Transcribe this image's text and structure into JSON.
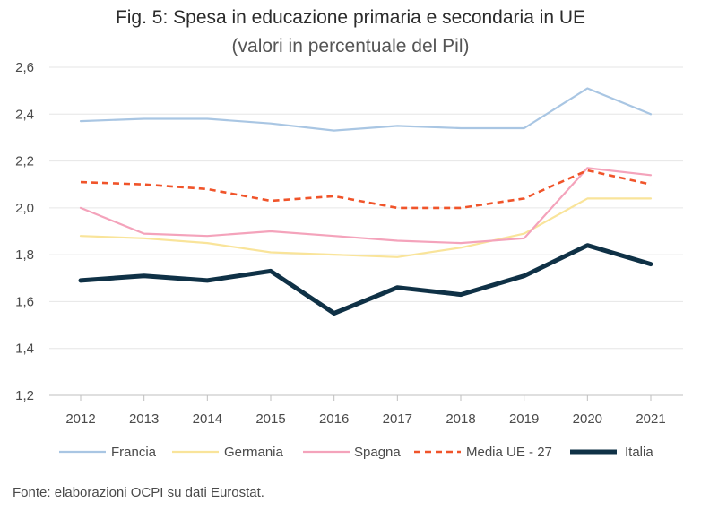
{
  "chart_data": {
    "type": "line",
    "title": "Fig. 5: Spesa in educazione primaria e secondaria in UE",
    "subtitle": "(valori in percentuale del Pil)",
    "categories": [
      "2012",
      "2013",
      "2014",
      "2015",
      "2016",
      "2017",
      "2018",
      "2019",
      "2020",
      "2021"
    ],
    "ylim": [
      1.2,
      2.6
    ],
    "yticks": [
      "1,2",
      "1,4",
      "1,6",
      "1,8",
      "2,0",
      "2,2",
      "2,4",
      "2,6"
    ],
    "ytick_values": [
      1.2,
      1.4,
      1.6,
      1.8,
      2.0,
      2.2,
      2.4,
      2.6
    ],
    "grid": true,
    "legend_position": "bottom",
    "series": [
      {
        "name": "Francia",
        "color": "#a9c6e3",
        "style": "solid",
        "width": "thin",
        "values": [
          2.37,
          2.38,
          2.38,
          2.36,
          2.33,
          2.35,
          2.34,
          2.34,
          2.51,
          2.4
        ]
      },
      {
        "name": "Germania",
        "color": "#f9e49a",
        "style": "solid",
        "width": "thin",
        "values": [
          1.88,
          1.87,
          1.85,
          1.81,
          1.8,
          1.79,
          1.83,
          1.89,
          2.04,
          2.04
        ]
      },
      {
        "name": "Spagna",
        "color": "#f4a3bb",
        "style": "solid",
        "width": "thin",
        "values": [
          2.0,
          1.89,
          1.88,
          1.9,
          1.88,
          1.86,
          1.85,
          1.87,
          2.17,
          2.14
        ]
      },
      {
        "name": "Media UE - 27",
        "color": "#f0542a",
        "style": "dashed",
        "width": "medium",
        "values": [
          2.11,
          2.1,
          2.08,
          2.03,
          2.05,
          2.0,
          2.0,
          2.04,
          2.16,
          2.1
        ]
      },
      {
        "name": "Italia",
        "color": "#0f3146",
        "style": "solid",
        "width": "thick",
        "values": [
          1.69,
          1.71,
          1.69,
          1.73,
          1.55,
          1.66,
          1.63,
          1.71,
          1.84,
          1.76
        ]
      }
    ]
  },
  "source": "Fonte: elaborazioni OCPI su dati Eurostat."
}
